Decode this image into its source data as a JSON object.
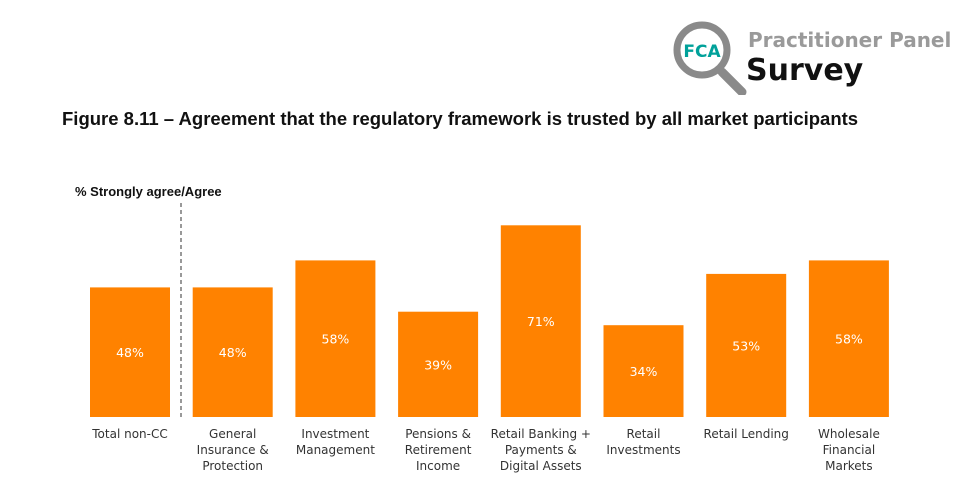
{
  "logo": {
    "line1": "Practitioner Panel",
    "line2": "Survey",
    "badge": "FCA",
    "accent": "#00a19a"
  },
  "chart_data": {
    "type": "bar",
    "title": "Figure 8.11 – Agreement that the regulatory framework is trusted by all market participants",
    "ylabel": "% Strongly agree/Agree",
    "categories": [
      [
        "Total non-CC"
      ],
      [
        "General",
        "Insurance &",
        "Protection"
      ],
      [
        "Investment",
        "Management"
      ],
      [
        "Pensions &",
        "Retirement",
        "Income"
      ],
      [
        "Retail Banking +",
        "Payments &",
        "Digital Assets"
      ],
      [
        "Retail",
        "Investments"
      ],
      [
        "Retail Lending"
      ],
      [
        "Wholesale",
        "Financial",
        "Markets"
      ]
    ],
    "values": [
      48,
      48,
      58,
      39,
      71,
      34,
      53,
      58
    ],
    "value_labels": [
      "48%",
      "48%",
      "58%",
      "39%",
      "71%",
      "34%",
      "53%",
      "58%"
    ],
    "bar_color": "#ff8200",
    "divider_after_index": 0,
    "ylim": [
      0,
      100
    ],
    "grid": false
  }
}
